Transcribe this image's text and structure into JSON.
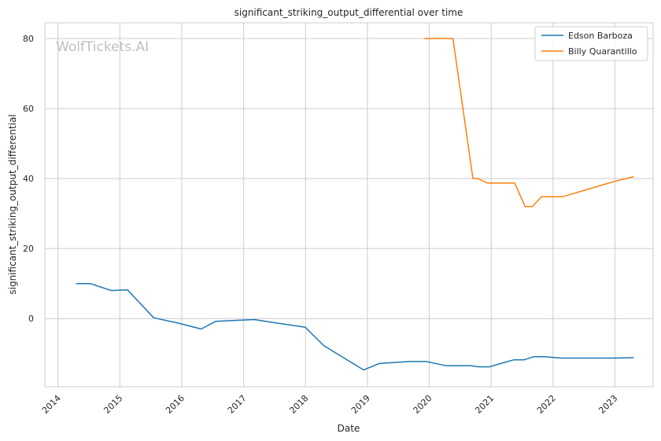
{
  "chart_data": {
    "type": "line",
    "title": "significant_striking_output_differential over time",
    "xlabel": "Date",
    "ylabel": "significant_striking_output_differential",
    "watermark": "WolfTickets.AI",
    "x_ticks": [
      "2014",
      "2015",
      "2016",
      "2017",
      "2018",
      "2019",
      "2020",
      "2021",
      "2022",
      "2023"
    ],
    "y_ticks": [
      0,
      20,
      40,
      60,
      80
    ],
    "xlim": [
      "2013-10-15",
      "2023-08-15"
    ],
    "ylim": [
      -19.5,
      84.5
    ],
    "grid": true,
    "legend_position": "top-right",
    "series": [
      {
        "name": "Edson Barboza",
        "color": "#1f77b4",
        "points": [
          [
            "2014-04-20",
            10.0
          ],
          [
            "2014-07-10",
            10.0
          ],
          [
            "2014-11-10",
            8.0
          ],
          [
            "2015-02-15",
            8.2
          ],
          [
            "2015-07-20",
            0.2
          ],
          [
            "2015-12-01",
            -1.2
          ],
          [
            "2016-04-25",
            -3.0
          ],
          [
            "2016-07-20",
            -0.8
          ],
          [
            "2017-03-05",
            -0.3
          ],
          [
            "2017-07-01",
            -1.2
          ],
          [
            "2017-12-30",
            -2.5
          ],
          [
            "2018-04-20",
            -7.8
          ],
          [
            "2018-12-10",
            -14.7
          ],
          [
            "2019-03-15",
            -12.8
          ],
          [
            "2019-09-10",
            -12.3
          ],
          [
            "2019-12-15",
            -12.3
          ],
          [
            "2020-04-10",
            -13.5
          ],
          [
            "2020-09-01",
            -13.5
          ],
          [
            "2020-10-20",
            -13.8
          ],
          [
            "2020-12-20",
            -13.8
          ],
          [
            "2021-05-15",
            -11.8
          ],
          [
            "2021-07-15",
            -11.8
          ],
          [
            "2021-09-10",
            -10.9
          ],
          [
            "2021-11-10",
            -10.9
          ],
          [
            "2022-02-20",
            -11.3
          ],
          [
            "2022-12-31",
            -11.3
          ],
          [
            "2023-04-20",
            -11.2
          ]
        ]
      },
      {
        "name": "Billy Quarantillo",
        "color": "#ff7f0e",
        "points": [
          [
            "2019-12-05",
            80.0
          ],
          [
            "2020-05-20",
            80.0
          ],
          [
            "2020-09-15",
            40.0
          ],
          [
            "2020-10-15",
            40.0
          ],
          [
            "2020-12-10",
            38.7
          ],
          [
            "2021-05-20",
            38.7
          ],
          [
            "2021-07-20",
            32.0
          ],
          [
            "2021-09-01",
            32.0
          ],
          [
            "2021-10-25",
            34.8
          ],
          [
            "2022-02-25",
            34.8
          ],
          [
            "2022-12-31",
            39.2
          ],
          [
            "2023-04-20",
            40.5
          ]
        ]
      }
    ]
  }
}
